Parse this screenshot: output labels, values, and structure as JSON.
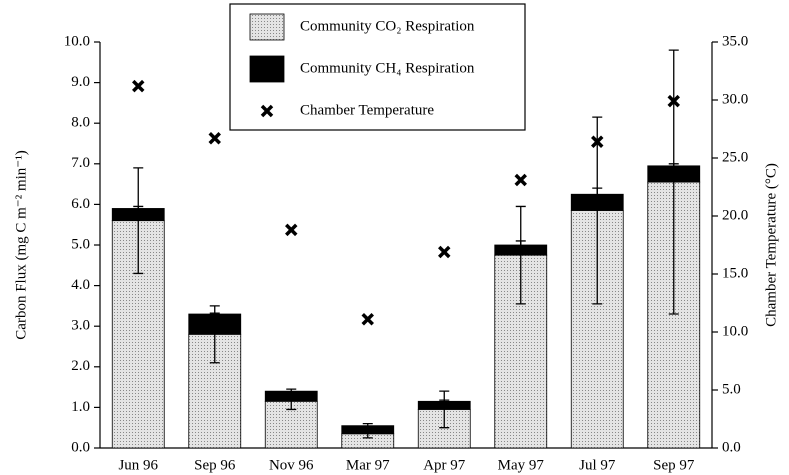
{
  "chart_data": {
    "type": "bar",
    "stacked": true,
    "y_label": "Carbon Flux (mg C m⁻² min⁻¹)",
    "y2_label": "Chamber Temperature (°C)",
    "categories": [
      "Jun 96",
      "Sep 96",
      "Nov 96",
      "Mar 97",
      "Apr 97",
      "May 97",
      "Jul 97",
      "Sep 97"
    ],
    "series": [
      {
        "name": "Community CO₂ Respiration",
        "type": "bar",
        "color": "#cfcfcf",
        "values": [
          5.6,
          2.8,
          1.15,
          0.35,
          0.95,
          4.75,
          5.85,
          6.55
        ],
        "errors": [
          1.3,
          0.7,
          0.2,
          0.1,
          0.45,
          1.2,
          2.3,
          3.25
        ]
      },
      {
        "name": "Community CH₄ Respiration",
        "type": "bar",
        "color": "#000000",
        "values": [
          0.3,
          0.5,
          0.25,
          0.2,
          0.2,
          0.25,
          0.4,
          0.4
        ],
        "errors": [
          0.05,
          0.02,
          0.05,
          0.05,
          0.03,
          0.1,
          0.15,
          0.05
        ]
      },
      {
        "name": "Chamber Temperature",
        "type": "scatter",
        "axis": "y2",
        "color": "#000000",
        "values": [
          31.2,
          26.7,
          18.8,
          11.1,
          16.9,
          23.1,
          26.4,
          29.9
        ]
      }
    ],
    "ylim": [
      0,
      10
    ],
    "yticks": [
      {
        "value": 0,
        "label": "0.0"
      },
      {
        "value": 1,
        "label": "1.0"
      },
      {
        "value": 2,
        "label": "2.0"
      },
      {
        "value": 3,
        "label": "3.0"
      },
      {
        "value": 4,
        "label": "4.0"
      },
      {
        "value": 5,
        "label": "5.0"
      },
      {
        "value": 6,
        "label": "6.0"
      },
      {
        "value": 7,
        "label": "7.0"
      },
      {
        "value": 8,
        "label": "8.0"
      },
      {
        "value": 9,
        "label": "9.0"
      },
      {
        "value": 10,
        "label": "10.0"
      }
    ],
    "y2lim": [
      0,
      35
    ],
    "y2ticks": [
      {
        "value": 0,
        "label": "0.0"
      },
      {
        "value": 5,
        "label": "5.0"
      },
      {
        "value": 10,
        "label": "10.0"
      },
      {
        "value": 15,
        "label": "15.0"
      },
      {
        "value": 20,
        "label": "20.0"
      },
      {
        "value": 25,
        "label": "25.0"
      },
      {
        "value": 30,
        "label": "30.0"
      },
      {
        "value": 35,
        "label": "35.0"
      }
    ],
    "legend": "top",
    "grid": false
  }
}
